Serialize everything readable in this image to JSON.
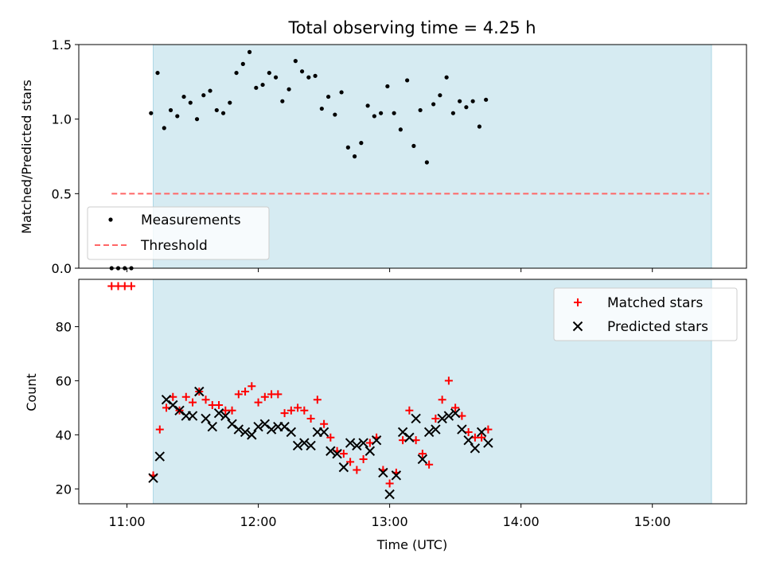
{
  "colors": {
    "observing_window": "#add8e6",
    "measurement": "#000000",
    "threshold": "#ff6666",
    "matched": "#ff0000",
    "predicted": "#000000"
  },
  "chart_data": [
    {
      "type": "scatter",
      "title": "Total observing time = 4.25 h",
      "xlabel": "",
      "ylabel": "Matched/Predicted stars",
      "xlim": [
        "10:38",
        "15:43"
      ],
      "ylim": [
        0,
        1.5
      ],
      "yticks": [
        0.0,
        0.5,
        1.0,
        1.5
      ],
      "ytick_labels": [
        "0.0",
        "0.5",
        "1.0",
        "1.5"
      ],
      "xticks": [
        "11:00",
        "12:00",
        "13:00",
        "14:00",
        "15:00"
      ],
      "xtick_labels": [
        "",
        "",
        "",
        "",
        ""
      ],
      "legend_position": "lower-left",
      "observing_window": [
        "11:12",
        "15:27"
      ],
      "threshold": {
        "name": "Threshold",
        "y": 0.5,
        "x_range": [
          "10:53",
          "15:26"
        ]
      },
      "series": [
        {
          "name": "Measurements",
          "marker": "dot",
          "x": [
            "10:53",
            "10:56",
            "10:59",
            "11:02",
            "11:11",
            "11:14",
            "11:17",
            "11:20",
            "11:23",
            "11:26",
            "11:29",
            "11:32",
            "11:35",
            "11:38",
            "11:41",
            "11:44",
            "11:47",
            "11:50",
            "11:53",
            "11:56",
            "11:59",
            "12:02",
            "12:05",
            "12:08",
            "12:11",
            "12:14",
            "12:17",
            "12:20",
            "12:23",
            "12:26",
            "12:29",
            "12:32",
            "12:35",
            "12:38",
            "12:41",
            "12:44",
            "12:47",
            "12:50",
            "12:53",
            "12:56",
            "12:59",
            "13:02",
            "13:05",
            "13:08",
            "13:11",
            "13:14",
            "13:17",
            "13:20",
            "13:23",
            "13:26",
            "13:29",
            "13:32",
            "13:35",
            "13:38",
            "13:41",
            "13:44",
            "13:47",
            "13:50",
            "13:53",
            "13:56",
            "13:59",
            "14:02",
            "14:05",
            "14:08",
            "14:11",
            "14:14",
            "14:17",
            "14:20",
            "14:23",
            "14:26",
            "14:29",
            "14:32",
            "14:35",
            "14:38",
            "14:41"
          ],
          "y": [
            0.0,
            0.0,
            0.0,
            0.0,
            1.04,
            1.31,
            0.94,
            1.06,
            1.02,
            1.15,
            1.11,
            1.0,
            1.16,
            1.19,
            1.06,
            1.04,
            1.11,
            1.31,
            1.37,
            1.45,
            1.21,
            1.23,
            1.31,
            1.28,
            1.12,
            1.2,
            1.39,
            1.32,
            1.28,
            1.29,
            1.07,
            1.15,
            1.03,
            1.18,
            0.81,
            0.75,
            0.84,
            1.09,
            1.02,
            1.04,
            1.22,
            1.04,
            0.93,
            1.26,
            0.82,
            1.06,
            0.71,
            1.1,
            1.16,
            1.28,
            1.04,
            1.12,
            1.08,
            1.12,
            0.95,
            1.13,
            null,
            null,
            null,
            null,
            null,
            null,
            null,
            null,
            null,
            null,
            null,
            null,
            null,
            null,
            null,
            null,
            null,
            null,
            null
          ]
        }
      ]
    },
    {
      "type": "scatter",
      "title": "",
      "xlabel": "Time (UTC)",
      "ylabel": "Count",
      "xlim": [
        "10:38",
        "15:43"
      ],
      "ylim": [
        14.5,
        97.5
      ],
      "yticks": [
        20,
        40,
        60,
        80
      ],
      "ytick_labels": [
        "20",
        "40",
        "60",
        "80"
      ],
      "xticks": [
        "11:00",
        "12:00",
        "13:00",
        "14:00",
        "15:00"
      ],
      "xtick_labels": [
        "11:00",
        "12:00",
        "13:00",
        "14:00",
        "15:00"
      ],
      "legend_position": "top-right",
      "observing_window": [
        "11:12",
        "15:27"
      ],
      "series": [
        {
          "name": "Matched stars",
          "marker": "plus",
          "x": [
            "10:53",
            "10:56",
            "10:59",
            "11:02",
            "11:12",
            "11:15",
            "11:18",
            "11:21",
            "11:24",
            "11:27",
            "11:30",
            "11:33",
            "11:36",
            "11:39",
            "11:42",
            "11:45",
            "11:48",
            "11:51",
            "11:54",
            "11:57",
            "12:00",
            "12:03",
            "12:06",
            "12:09",
            "12:12",
            "12:15",
            "12:18",
            "12:21",
            "12:24",
            "12:27",
            "12:30",
            "12:33",
            "12:36",
            "12:39",
            "12:42",
            "12:45",
            "12:48",
            "12:51",
            "12:54",
            "12:57",
            "13:00",
            "13:03",
            "13:06",
            "13:09",
            "13:12",
            "13:15",
            "13:18",
            "13:21",
            "13:24",
            "13:27",
            "13:30",
            "13:33",
            "13:36",
            "13:39",
            "13:42",
            "13:45",
            "13:48",
            "13:51",
            "13:54",
            "13:57",
            "14:00",
            "14:03",
            "14:06",
            "14:09",
            "14:12",
            "14:15",
            "14:18",
            "14:21",
            "14:24",
            "14:27",
            "14:30",
            "14:33",
            "14:36",
            "14:39",
            "14:42",
            "14:45",
            "14:48",
            "14:51",
            "14:54",
            "14:57",
            "15:00",
            "15:03",
            "15:06",
            "15:09",
            "15:12",
            "15:15",
            "15:18",
            "15:21",
            "15:24"
          ],
          "y": [
            95,
            95,
            95,
            95,
            25,
            42,
            50,
            54,
            49,
            54,
            52,
            56,
            53,
            51,
            51,
            49,
            49,
            55,
            56,
            58,
            52,
            54,
            55,
            55,
            48,
            49,
            50,
            49,
            46,
            53,
            44,
            39,
            34,
            33,
            30,
            27,
            31,
            37,
            39,
            27,
            22,
            26,
            38,
            49,
            38,
            33,
            29,
            46,
            53,
            60,
            50,
            47,
            41,
            39,
            39,
            42,
            null,
            null,
            null,
            null,
            null,
            null,
            null,
            null,
            null,
            null,
            null,
            null,
            null,
            null,
            null,
            null,
            null,
            null,
            null,
            null,
            null,
            null,
            null,
            null,
            null,
            null,
            null,
            null,
            null,
            null,
            null,
            null,
            null
          ]
        },
        {
          "name": "Predicted stars",
          "marker": "x",
          "x": [
            "11:12",
            "11:15",
            "11:18",
            "11:21",
            "11:24",
            "11:27",
            "11:30",
            "11:33",
            "11:36",
            "11:39",
            "11:42",
            "11:45",
            "11:48",
            "11:51",
            "11:54",
            "11:57",
            "12:00",
            "12:03",
            "12:06",
            "12:09",
            "12:12",
            "12:15",
            "12:18",
            "12:21",
            "12:24",
            "12:27",
            "12:30",
            "12:33",
            "12:36",
            "12:39",
            "12:42",
            "12:45",
            "12:48",
            "12:51",
            "12:54",
            "12:57",
            "13:00",
            "13:03",
            "13:06",
            "13:09",
            "13:12",
            "13:15",
            "13:18",
            "13:21",
            "13:24",
            "13:27",
            "13:30",
            "13:33",
            "13:36",
            "13:39",
            "13:42",
            "13:45",
            "13:48",
            "13:51",
            "13:54",
            "13:57",
            "14:00",
            "14:03",
            "14:06",
            "14:09",
            "14:12",
            "14:15",
            "14:18",
            "14:21",
            "14:24",
            "14:27",
            "14:30",
            "14:33",
            "14:36",
            "14:39",
            "14:42"
          ],
          "y": [
            24,
            32,
            53,
            51,
            49,
            47,
            47,
            56,
            46,
            43,
            48,
            47,
            44,
            42,
            41,
            40,
            43,
            44,
            42,
            43,
            43,
            41,
            36,
            37,
            36,
            41,
            41,
            34,
            33,
            28,
            37,
            36,
            37,
            34,
            38,
            26,
            18,
            25,
            41,
            39,
            46,
            31,
            41,
            42,
            46,
            47,
            48,
            42,
            38,
            35,
            41,
            37,
            null,
            null,
            null,
            null,
            null,
            null,
            null,
            null,
            null,
            null,
            null,
            null,
            null,
            null,
            null,
            null,
            null,
            null,
            null
          ]
        }
      ]
    }
  ]
}
